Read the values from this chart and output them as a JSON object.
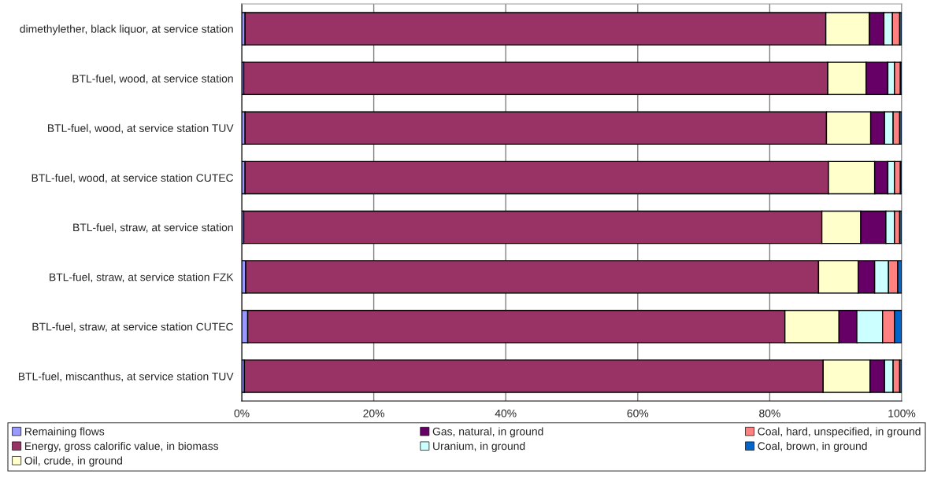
{
  "chart_data": {
    "type": "bar",
    "orientation": "horizontal",
    "stacked": true,
    "categories": [
      "dimethylether, black liquor, at service station",
      "BTL-fuel, wood, at service station",
      "BTL-fuel, wood, at service station TUV",
      "BTL-fuel, wood, at service station CUTEC",
      "BTL-fuel, straw, at service station",
      "BTL-fuel, straw, at service station FZK",
      "BTL-fuel, straw, at service station CUTEC",
      "BTL-fuel, miscanthus, at service station TUV"
    ],
    "series": [
      {
        "name": "Remaining flows",
        "color": "#9999ff",
        "values": [
          0.5,
          0.3,
          0.5,
          0.5,
          0.3,
          0.6,
          0.9,
          0.4
        ]
      },
      {
        "name": "Energy, gross calorific value, in biomass",
        "color": "#993366",
        "values": [
          88.0,
          88.5,
          88.1,
          88.4,
          87.6,
          86.8,
          81.4,
          87.7
        ]
      },
      {
        "name": "Oil, crude, in ground",
        "color": "#ffffcc",
        "values": [
          6.6,
          5.8,
          6.7,
          7.0,
          5.9,
          6.0,
          8.2,
          7.1
        ]
      },
      {
        "name": "Gas, natural, in ground",
        "color": "#660066",
        "values": [
          2.2,
          3.3,
          2.1,
          2.0,
          3.8,
          2.5,
          2.7,
          2.2
        ]
      },
      {
        "name": "Uranium, in ground",
        "color": "#ccffff",
        "values": [
          1.3,
          1.0,
          1.3,
          1.0,
          1.3,
          2.1,
          3.9,
          1.3
        ]
      },
      {
        "name": "Coal, hard, unspecified, in ground",
        "color": "#ff8080",
        "values": [
          1.1,
          0.9,
          1.0,
          0.9,
          0.8,
          1.4,
          1.8,
          1.0
        ]
      },
      {
        "name": "Coal, brown, in ground",
        "color": "#0066cc",
        "values": [
          0.3,
          0.2,
          0.3,
          0.2,
          0.3,
          0.6,
          1.1,
          0.3
        ]
      }
    ],
    "xlim": [
      0,
      100
    ],
    "xticks": [
      {
        "value": 0,
        "label": "0%"
      },
      {
        "value": 20,
        "label": "20%"
      },
      {
        "value": 40,
        "label": "40%"
      },
      {
        "value": 60,
        "label": "60%"
      },
      {
        "value": 80,
        "label": "80%"
      },
      {
        "value": 100,
        "label": "100%"
      }
    ],
    "grid": "x",
    "legend": "bottom"
  }
}
